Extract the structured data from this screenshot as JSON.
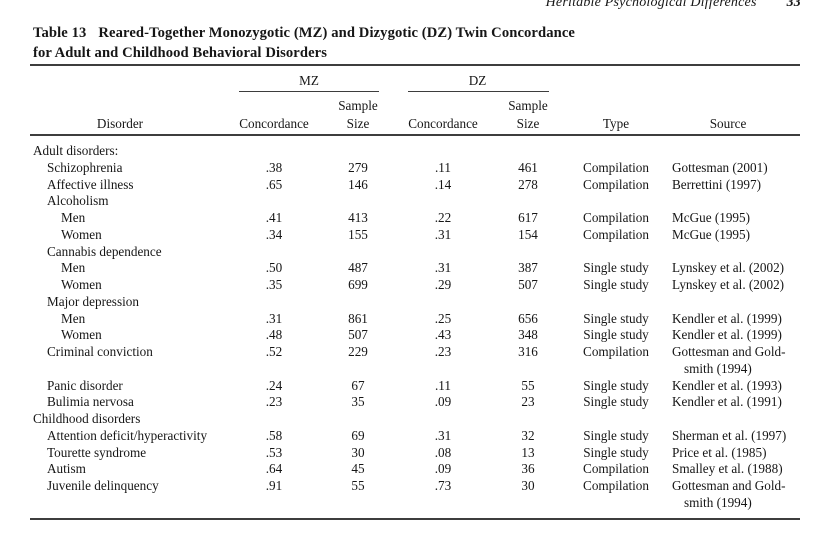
{
  "page": {
    "running_head": "Heritable Psychological Differences",
    "page_number": "33"
  },
  "table": {
    "title_label": "Table 13",
    "title_rest": "Reared-Together Monozygotic (MZ) and Dizygotic (DZ) Twin Concordance",
    "title_line2": "for Adult and Childhood Behavioral Disorders",
    "spanners": {
      "mz": "MZ",
      "dz": "DZ"
    },
    "headers": {
      "disorder": "Disorder",
      "sample": "Sample",
      "size": "Size",
      "concordance": "Concordance",
      "type": "Type",
      "source": "Source"
    },
    "rows": [
      {
        "indent": 0,
        "disorder": "Adult disorders:",
        "mz_concordance": "",
        "mz_sample_size": "",
        "dz_concordance": "",
        "dz_sample_size": "",
        "type": "",
        "source": []
      },
      {
        "indent": 1,
        "disorder": "Schizophrenia",
        "mz_concordance": ".38",
        "mz_sample_size": "279",
        "dz_concordance": ".11",
        "dz_sample_size": "461",
        "type": "Compilation",
        "source": [
          "Gottesman (2001)"
        ]
      },
      {
        "indent": 1,
        "disorder": "Affective illness",
        "mz_concordance": ".65",
        "mz_sample_size": "146",
        "dz_concordance": ".14",
        "dz_sample_size": "278",
        "type": "Compilation",
        "source": [
          "Berrettini (1997)"
        ]
      },
      {
        "indent": 1,
        "disorder": "Alcoholism",
        "mz_concordance": "",
        "mz_sample_size": "",
        "dz_concordance": "",
        "dz_sample_size": "",
        "type": "",
        "source": []
      },
      {
        "indent": 2,
        "disorder": "Men",
        "mz_concordance": ".41",
        "mz_sample_size": "413",
        "dz_concordance": ".22",
        "dz_sample_size": "617",
        "type": "Compilation",
        "source": [
          "McGue (1995)"
        ]
      },
      {
        "indent": 2,
        "disorder": "Women",
        "mz_concordance": ".34",
        "mz_sample_size": "155",
        "dz_concordance": ".31",
        "dz_sample_size": "154",
        "type": "Compilation",
        "source": [
          "McGue (1995)"
        ]
      },
      {
        "indent": 1,
        "disorder": "Cannabis dependence",
        "mz_concordance": "",
        "mz_sample_size": "",
        "dz_concordance": "",
        "dz_sample_size": "",
        "type": "",
        "source": []
      },
      {
        "indent": 2,
        "disorder": "Men",
        "mz_concordance": ".50",
        "mz_sample_size": "487",
        "dz_concordance": ".31",
        "dz_sample_size": "387",
        "type": "Single study",
        "source": [
          "Lynskey et al. (2002)"
        ]
      },
      {
        "indent": 2,
        "disorder": "Women",
        "mz_concordance": ".35",
        "mz_sample_size": "699",
        "dz_concordance": ".29",
        "dz_sample_size": "507",
        "type": "Single study",
        "source": [
          "Lynskey et al. (2002)"
        ]
      },
      {
        "indent": 1,
        "disorder": "Major depression",
        "mz_concordance": "",
        "mz_sample_size": "",
        "dz_concordance": "",
        "dz_sample_size": "",
        "type": "",
        "source": []
      },
      {
        "indent": 2,
        "disorder": "Men",
        "mz_concordance": ".31",
        "mz_sample_size": "861",
        "dz_concordance": ".25",
        "dz_sample_size": "656",
        "type": "Single study",
        "source": [
          "Kendler et al. (1999)"
        ]
      },
      {
        "indent": 2,
        "disorder": "Women",
        "mz_concordance": ".48",
        "mz_sample_size": "507",
        "dz_concordance": ".43",
        "dz_sample_size": "348",
        "type": "Single study",
        "source": [
          "Kendler et al. (1999)"
        ]
      },
      {
        "indent": 1,
        "disorder": "Criminal conviction",
        "mz_concordance": ".52",
        "mz_sample_size": "229",
        "dz_concordance": ".23",
        "dz_sample_size": "316",
        "type": "Compilation",
        "source": [
          "Gottesman and Gold-",
          "smith (1994)"
        ]
      },
      {
        "indent": 1,
        "disorder": "Panic disorder",
        "mz_concordance": ".24",
        "mz_sample_size": "67",
        "dz_concordance": ".11",
        "dz_sample_size": "55",
        "type": "Single study",
        "source": [
          "Kendler et al. (1993)"
        ]
      },
      {
        "indent": 1,
        "disorder": "Bulimia nervosa",
        "mz_concordance": ".23",
        "mz_sample_size": "35",
        "dz_concordance": ".09",
        "dz_sample_size": "23",
        "type": "Single study",
        "source": [
          "Kendler et al. (1991)"
        ]
      },
      {
        "indent": 0,
        "disorder": "Childhood disorders",
        "mz_concordance": "",
        "mz_sample_size": "",
        "dz_concordance": "",
        "dz_sample_size": "",
        "type": "",
        "source": []
      },
      {
        "indent": 1,
        "disorder": "Attention deficit/hyperactivity",
        "mz_concordance": ".58",
        "mz_sample_size": "69",
        "dz_concordance": ".31",
        "dz_sample_size": "32",
        "type": "Single study",
        "source": [
          "Sherman et al. (1997)"
        ]
      },
      {
        "indent": 1,
        "disorder": "Tourette syndrome",
        "mz_concordance": ".53",
        "mz_sample_size": "30",
        "dz_concordance": ".08",
        "dz_sample_size": "13",
        "type": "Single study",
        "source": [
          "Price et al. (1985)"
        ]
      },
      {
        "indent": 1,
        "disorder": "Autism",
        "mz_concordance": ".64",
        "mz_sample_size": "45",
        "dz_concordance": ".09",
        "dz_sample_size": "36",
        "type": "Compilation",
        "source": [
          "Smalley et al. (1988)"
        ]
      },
      {
        "indent": 1,
        "disorder": "Juvenile delinquency",
        "mz_concordance": ".91",
        "mz_sample_size": "55",
        "dz_concordance": ".73",
        "dz_sample_size": "30",
        "type": "Compilation",
        "source": [
          "Gottesman and Gold-",
          "smith (1994)"
        ]
      }
    ]
  }
}
